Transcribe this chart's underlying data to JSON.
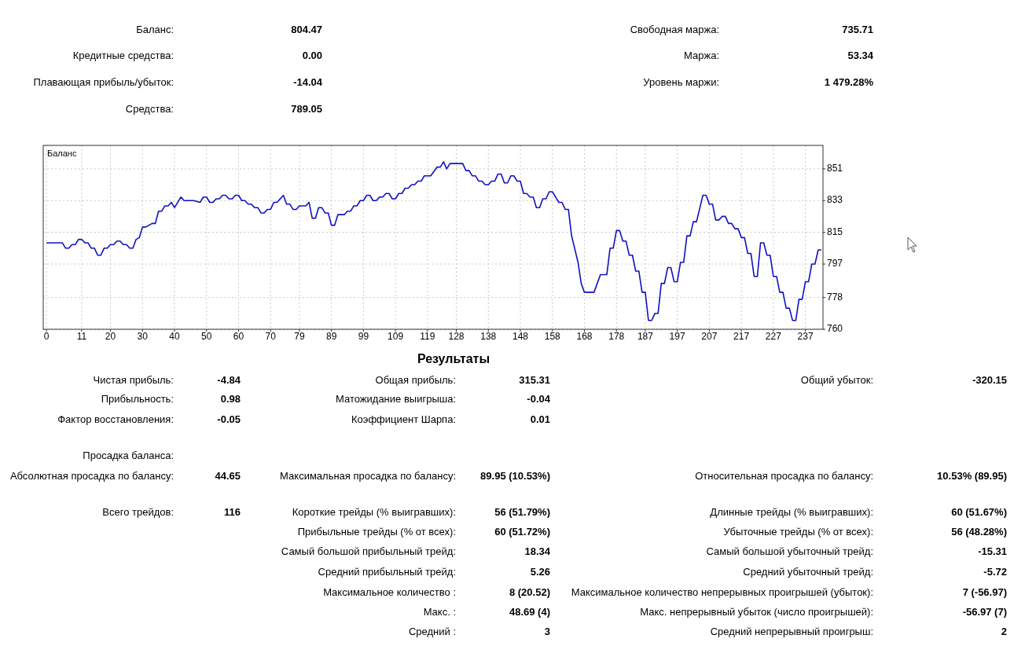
{
  "chart_data": [
    {
      "type": "other",
      "annotations": [
        "Баланс:",
        "804.47",
        "Свободная маржа:",
        "735.71",
        "Кредитные средства:",
        "0.00",
        "Маржа:",
        "53.34",
        "Плавающая прибыль/убыток:",
        "-14.04",
        "Уровень маржи:",
        "1 479.28%",
        "Средства:",
        "789.05"
      ]
    },
    {
      "type": "line",
      "title": "Баланс",
      "grid": true,
      "xlim": [
        -1,
        242.5
      ],
      "ylim": [
        760,
        864.3
      ],
      "xticks": [
        0,
        11,
        20,
        30,
        40,
        50,
        60,
        70,
        79,
        89,
        99,
        109,
        119,
        128,
        138,
        148,
        158,
        168,
        178,
        187,
        197,
        207,
        217,
        227,
        237
      ],
      "yticks": [
        760,
        778,
        797,
        815,
        833,
        851
      ],
      "x": [
        0,
        5,
        6,
        7,
        8,
        9,
        10,
        11,
        12,
        13,
        14,
        15,
        16,
        17,
        18,
        19,
        20,
        21,
        22,
        23,
        24,
        25,
        26,
        27,
        28,
        29,
        30,
        31,
        33,
        34,
        35,
        36,
        37,
        38,
        39,
        40,
        42,
        43,
        46,
        48,
        49,
        50,
        51,
        52,
        53,
        54,
        55,
        56,
        57,
        58,
        59,
        60,
        61,
        62,
        63,
        64,
        65,
        66,
        67,
        68,
        69,
        70,
        71,
        72,
        74,
        75,
        76,
        77,
        78,
        79,
        80,
        81,
        82,
        83,
        84,
        85,
        86,
        87,
        88,
        89,
        90,
        91,
        93,
        94,
        95,
        96,
        97,
        98,
        99,
        100,
        101,
        102,
        103,
        104,
        105,
        106,
        107,
        108,
        109,
        110,
        111,
        112,
        113,
        114,
        115,
        116,
        117,
        118,
        120,
        122,
        123,
        124,
        125,
        126,
        130,
        131,
        132,
        133,
        134,
        135,
        136,
        137,
        138,
        139,
        140,
        141,
        142,
        143,
        144,
        145,
        146,
        147,
        148,
        149,
        150,
        151,
        152,
        153,
        154,
        155,
        156,
        157,
        158,
        160,
        161,
        162,
        163,
        164,
        166,
        167,
        168,
        171,
        173,
        175,
        176,
        177,
        178,
        179,
        180,
        181,
        182,
        183,
        184,
        185,
        186,
        187,
        188,
        189,
        190,
        191,
        192,
        193,
        194,
        195,
        196,
        197,
        198,
        199,
        200,
        201,
        202,
        203,
        205,
        206,
        207,
        208,
        209,
        210,
        211,
        212,
        213,
        214,
        215,
        216,
        217,
        218,
        219,
        220,
        221,
        222,
        223,
        224,
        225,
        226,
        227,
        228,
        229,
        230,
        231,
        232,
        233,
        234,
        235,
        236,
        237,
        238,
        239,
        240,
        241,
        242
      ],
      "series": [
        {
          "color": "#1010c0",
          "values": [
            809,
            809,
            806,
            806,
            808,
            808,
            811,
            811,
            809,
            809,
            806,
            806,
            802,
            802,
            806,
            806,
            808,
            808,
            810,
            810,
            808,
            808,
            806,
            806,
            811,
            812,
            818,
            818,
            820,
            820,
            827,
            827,
            830,
            830,
            832,
            829,
            835,
            833,
            833,
            832,
            835,
            835,
            832,
            832,
            834,
            834,
            836,
            836,
            834,
            834,
            836,
            836,
            833,
            833,
            831,
            831,
            829,
            829,
            826,
            826,
            828,
            828,
            832,
            832,
            836,
            831,
            831,
            828,
            828,
            830,
            830,
            830,
            832,
            823,
            823,
            829,
            829,
            826,
            826,
            819,
            819,
            825,
            825,
            827,
            827,
            830,
            830,
            833,
            833,
            836,
            836,
            833,
            833,
            835,
            835,
            837,
            837,
            834,
            834,
            837,
            837,
            840,
            840,
            842,
            842,
            844,
            844,
            847,
            847,
            852,
            852,
            855,
            851,
            854,
            854,
            850,
            850,
            847,
            847,
            844,
            844,
            842,
            842,
            844,
            844,
            848,
            848,
            843,
            843,
            847,
            847,
            844,
            844,
            837,
            837,
            835,
            835,
            829,
            829,
            834,
            834,
            838,
            838,
            832,
            832,
            828,
            828,
            813,
            798,
            786,
            781,
            781,
            791,
            791,
            806,
            806,
            816,
            816,
            810,
            810,
            802,
            802,
            793,
            793,
            781,
            781,
            765,
            765,
            769,
            769,
            786,
            786,
            795,
            795,
            787,
            787,
            798,
            798,
            813,
            813,
            821,
            821,
            836,
            836,
            831,
            831,
            822,
            822,
            824,
            824,
            820,
            820,
            817,
            817,
            812,
            812,
            803,
            803,
            790,
            790,
            809,
            809,
            802,
            802,
            790,
            790,
            781,
            781,
            772,
            772,
            765,
            765,
            777,
            777,
            787,
            787,
            797,
            797,
            805,
            805
          ]
        }
      ]
    },
    {
      "type": "other",
      "title": "Результаты",
      "annotations": [
        "Чистая прибыль:",
        "-4.84",
        "Общая прибыль:",
        "315.31",
        "Общий убыток:",
        "-320.15",
        "Прибыльность:",
        "0.98",
        "Матожидание выигрыша:",
        "-0.04",
        "Фактор восстановления:",
        "-0.05",
        "Коэффициент Шарпа:",
        "0.01",
        "Просадка баланса:",
        "Абсолютная просадка по балансу:",
        "44.65",
        "Максимальная просадка по балансу:",
        "89.95 (10.53%)",
        "Относительная просадка по балансу:",
        "10.53% (89.95)",
        "Всего трейдов:",
        "116",
        "Короткие трейды (% выигравших):",
        "56 (51.79%)",
        "Длинные трейды (% выигравших):",
        "60 (51.67%)",
        "Прибыльные трейды (% от всех):",
        "60 (51.72%)",
        "Убыточные трейды (% от всех):",
        "56 (48.28%)",
        "Самый большой прибыльный трейд:",
        "18.34",
        "Самый большой убыточный трейд:",
        "-15.31",
        "Средний прибыльный трейд:",
        "5.26",
        "Средний убыточный трейд:",
        "-5.72",
        "Максимальное количество :",
        "8 (20.52)",
        "Максимальное количество непрерывных проигрышей (убыток):",
        "7 (-56.97)",
        "Макс. :",
        "48.69 (4)",
        "Макс. непрерывный убыток (число проигрышей):",
        "-56.97 (7)",
        "Средний :",
        "3",
        "Средний непрерывный проигрыш:",
        "2"
      ]
    }
  ]
}
